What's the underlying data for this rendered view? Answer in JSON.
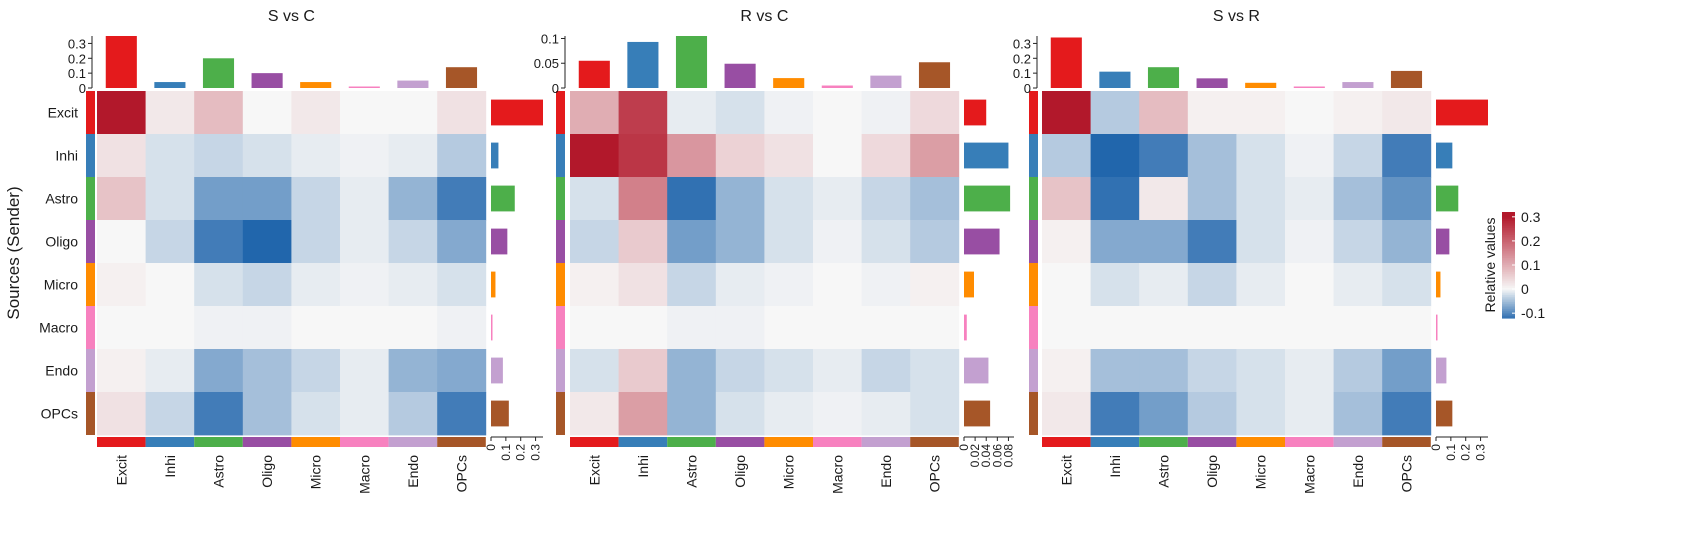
{
  "y_axis_title": "Sources (Sender)",
  "cell_types": [
    "Excit",
    "Inhi",
    "Astro",
    "Oligo",
    "Micro",
    "Macro",
    "Endo",
    "OPCs"
  ],
  "cell_type_colors": [
    "#E41A1C",
    "#377EB8",
    "#4DAF4A",
    "#984EA3",
    "#FF8C00",
    "#F781BF",
    "#C3A0D0",
    "#A65628"
  ],
  "legend": {
    "title": "Relative values",
    "ticks": [
      "0.3",
      "0.2",
      "0.1",
      "0",
      "-0.1"
    ],
    "tick_values": [
      0.3,
      0.2,
      0.1,
      0,
      -0.1
    ],
    "min": -0.12,
    "max": 0.32
  },
  "chart_data": [
    {
      "type": "heatmap",
      "title": "S vs C",
      "rows": [
        "Excit",
        "Inhi",
        "Astro",
        "Oligo",
        "Micro",
        "Macro",
        "Endo",
        "OPCs"
      ],
      "columns": [
        "Excit",
        "Inhi",
        "Astro",
        "Oligo",
        "Micro",
        "Macro",
        "Endo",
        "OPCs"
      ],
      "values": [
        [
          0.31,
          0.02,
          0.08,
          0.0,
          0.02,
          0.0,
          0.0,
          0.03
        ],
        [
          0.03,
          -0.02,
          -0.03,
          -0.02,
          -0.01,
          -0.005,
          -0.01,
          -0.04
        ],
        [
          0.07,
          -0.02,
          -0.08,
          -0.08,
          -0.03,
          -0.01,
          -0.06,
          -0.11
        ],
        [
          0.0,
          -0.03,
          -0.11,
          -0.13,
          -0.03,
          -0.01,
          -0.03,
          -0.07
        ],
        [
          0.01,
          0.0,
          -0.02,
          -0.03,
          -0.01,
          -0.005,
          -0.01,
          -0.02
        ],
        [
          0.0,
          0.0,
          -0.005,
          -0.005,
          0.0,
          0.0,
          0.0,
          -0.005
        ],
        [
          0.01,
          -0.01,
          -0.07,
          -0.05,
          -0.03,
          -0.01,
          -0.06,
          -0.07
        ],
        [
          0.03,
          -0.03,
          -0.11,
          -0.05,
          -0.02,
          -0.01,
          -0.04,
          -0.11
        ]
      ],
      "top_bars": {
        "values": [
          0.35,
          0.04,
          0.2,
          0.1,
          0.04,
          0.01,
          0.05,
          0.14
        ],
        "ylim": [
          0,
          0.35
        ],
        "ticks": [
          "0.3",
          "0.2",
          "0.1",
          "0"
        ],
        "tick_values": [
          0.3,
          0.2,
          0.1,
          0
        ]
      },
      "right_bars": {
        "values": [
          0.35,
          0.05,
          0.16,
          0.11,
          0.03,
          0.01,
          0.08,
          0.12
        ],
        "xlim": [
          0,
          0.35
        ],
        "ticks": [
          "0",
          "0.1",
          "0.2",
          "0.3"
        ],
        "tick_values": [
          0,
          0.1,
          0.2,
          0.3
        ]
      }
    },
    {
      "type": "heatmap",
      "title": "R vs C",
      "rows": [
        "Excit",
        "Inhi",
        "Astro",
        "Oligo",
        "Micro",
        "Macro",
        "Endo",
        "OPCs"
      ],
      "columns": [
        "Excit",
        "Inhi",
        "Astro",
        "Oligo",
        "Micro",
        "Macro",
        "Endo",
        "OPCs"
      ],
      "values": [
        [
          0.1,
          0.25,
          -0.01,
          -0.02,
          -0.005,
          0.0,
          -0.005,
          0.04
        ],
        [
          0.3,
          0.26,
          0.13,
          0.05,
          0.03,
          0.0,
          0.04,
          0.12
        ],
        [
          -0.02,
          0.16,
          -0.12,
          -0.06,
          -0.02,
          -0.01,
          -0.03,
          -0.05
        ],
        [
          -0.03,
          0.06,
          -0.08,
          -0.06,
          -0.02,
          -0.005,
          -0.02,
          -0.04
        ],
        [
          0.01,
          0.03,
          -0.03,
          -0.01,
          -0.005,
          0.0,
          -0.005,
          0.01
        ],
        [
          0.0,
          0.0,
          -0.005,
          -0.005,
          0.0,
          0.0,
          0.0,
          0.0
        ],
        [
          -0.02,
          0.06,
          -0.06,
          -0.03,
          -0.02,
          -0.01,
          -0.03,
          -0.02
        ],
        [
          0.02,
          0.12,
          -0.06,
          -0.02,
          -0.01,
          -0.005,
          -0.01,
          -0.02
        ]
      ],
      "top_bars": {
        "values": [
          0.055,
          0.093,
          0.105,
          0.049,
          0.02,
          0.005,
          0.025,
          0.052
        ],
        "ylim": [
          0,
          0.105
        ],
        "ticks": [
          "0.1",
          "0.05",
          "0"
        ],
        "tick_values": [
          0.1,
          0.05,
          0
        ]
      },
      "right_bars": {
        "values": [
          0.04,
          0.08,
          0.083,
          0.064,
          0.018,
          0.005,
          0.044,
          0.047
        ],
        "xlim": [
          0,
          0.09
        ],
        "ticks": [
          "0",
          "0.02",
          "0.04",
          "0.06",
          "0.08"
        ],
        "tick_values": [
          0,
          0.02,
          0.04,
          0.06,
          0.08
        ]
      }
    },
    {
      "type": "heatmap",
      "title": "S vs R",
      "rows": [
        "Excit",
        "Inhi",
        "Astro",
        "Oligo",
        "Micro",
        "Macro",
        "Endo",
        "OPCs"
      ],
      "columns": [
        "Excit",
        "Inhi",
        "Astro",
        "Oligo",
        "Micro",
        "Macro",
        "Endo",
        "OPCs"
      ],
      "values": [
        [
          0.31,
          -0.04,
          0.08,
          0.01,
          0.01,
          0.0,
          0.01,
          0.02
        ],
        [
          -0.04,
          -0.13,
          -0.11,
          -0.05,
          -0.02,
          -0.005,
          -0.03,
          -0.11
        ],
        [
          0.07,
          -0.12,
          0.02,
          -0.05,
          -0.02,
          -0.01,
          -0.05,
          -0.09
        ],
        [
          0.01,
          -0.07,
          -0.07,
          -0.11,
          -0.02,
          -0.005,
          -0.03,
          -0.06
        ],
        [
          0.0,
          -0.02,
          -0.01,
          -0.03,
          -0.01,
          0.0,
          -0.01,
          -0.02
        ],
        [
          0.0,
          0.0,
          0.0,
          0.0,
          0.0,
          0.0,
          0.0,
          0.0
        ],
        [
          0.01,
          -0.05,
          -0.05,
          -0.03,
          -0.02,
          -0.01,
          -0.04,
          -0.08
        ],
        [
          0.02,
          -0.11,
          -0.08,
          -0.04,
          -0.02,
          -0.01,
          -0.05,
          -0.11
        ]
      ],
      "top_bars": {
        "values": [
          0.34,
          0.11,
          0.14,
          0.065,
          0.035,
          0.01,
          0.04,
          0.115
        ],
        "ylim": [
          0,
          0.35
        ],
        "ticks": [
          "0.3",
          "0.2",
          "0.1",
          "0"
        ],
        "tick_values": [
          0.3,
          0.2,
          0.1,
          0
        ]
      },
      "right_bars": {
        "values": [
          0.35,
          0.11,
          0.15,
          0.09,
          0.03,
          0.01,
          0.07,
          0.11
        ],
        "xlim": [
          0,
          0.35
        ],
        "ticks": [
          "0",
          "0.1",
          "0.2",
          "0.3"
        ],
        "tick_values": [
          0,
          0.1,
          0.2,
          0.3
        ]
      }
    }
  ]
}
